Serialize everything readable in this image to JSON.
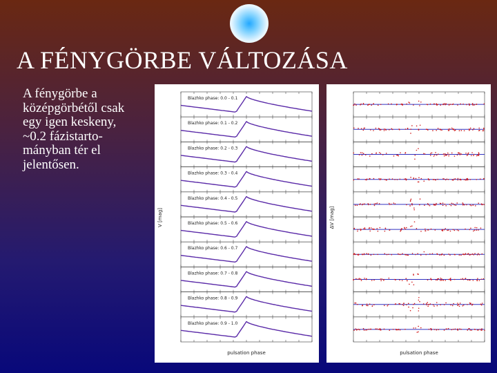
{
  "header": {
    "title": "A FÉNYGÖRBE VÁLTOZÁSA"
  },
  "body": {
    "lines": [
      "A fénygörbe a",
      "középgörbétől csak",
      "egy igen keskeny,",
      "~0.2 fázistarto-",
      "mányban tér el",
      "jelentősen."
    ]
  },
  "figures": [
    {
      "y_label": "V [mag]",
      "x_label": "pulsation phase",
      "panel_labels": [
        "Blazhko phase: 0.0 - 0.1",
        "Blazhko phase: 0.1 - 0.2",
        "Blazhko phase: 0.2 - 0.3",
        "Blazhko phase: 0.3 - 0.4",
        "Blazhko phase: 0.4 - 0.5",
        "Blazhko phase: 0.5 - 0.6",
        "Blazhko phase: 0.6 - 0.7",
        "Blazhko phase: 0.7 - 0.8",
        "Blazhko phase: 0.8 - 0.9",
        "Blazhko phase: 0.9 - 1.0"
      ]
    },
    {
      "y_label": "ΔV [mag]",
      "x_label": "pulsation phase"
    }
  ]
}
